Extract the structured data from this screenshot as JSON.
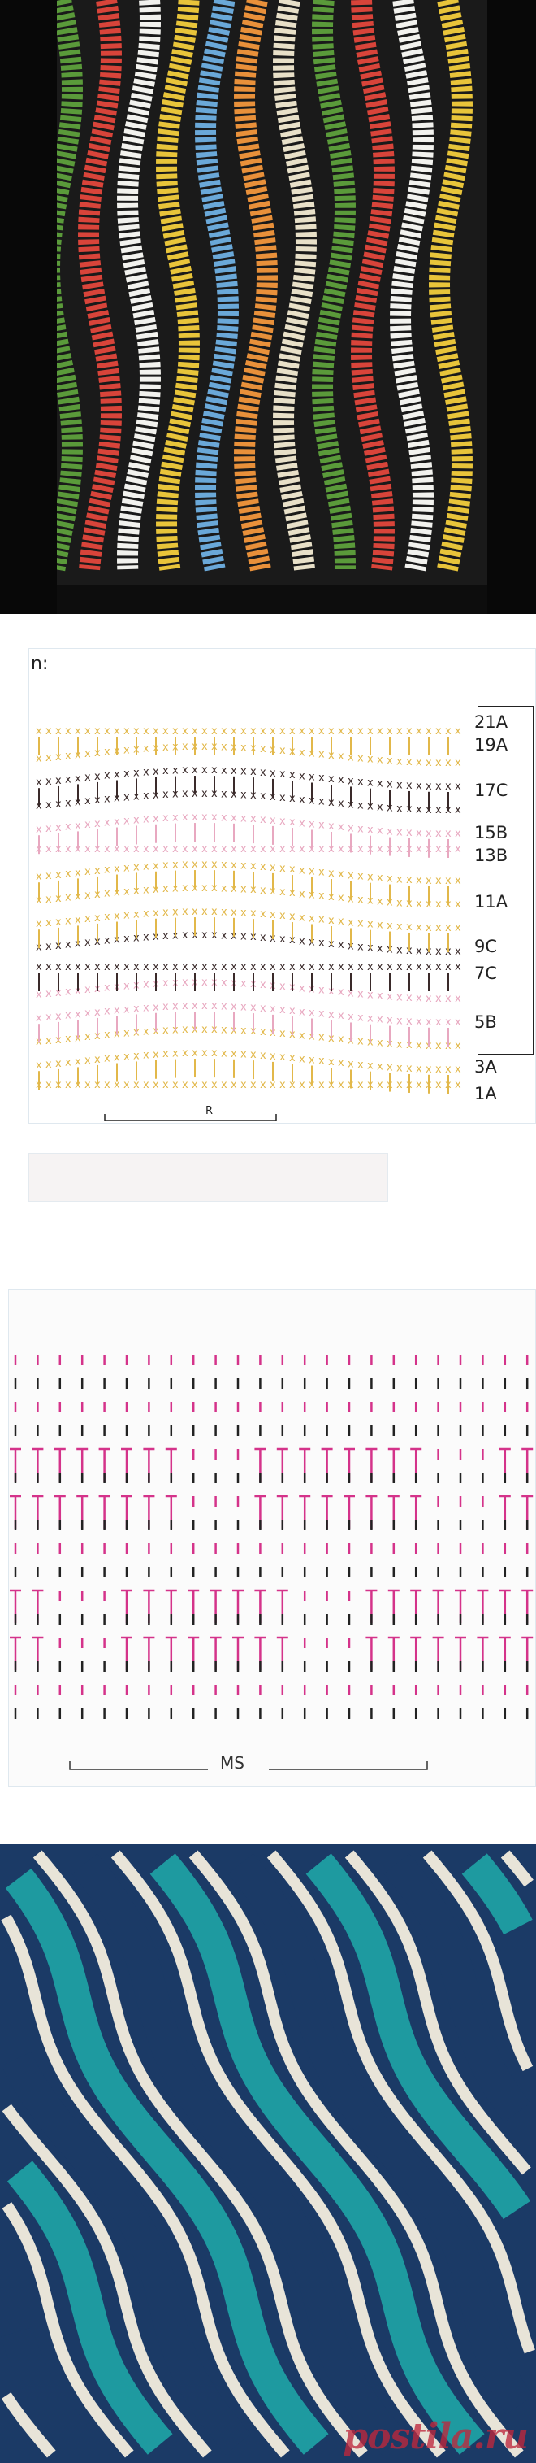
{
  "photo_top": {
    "subject": "crochet-top-photo",
    "stripe_colors": [
      "#5a9a3a",
      "#d8443a",
      "#f2f2ee",
      "#e8c43a",
      "#6aa8d8",
      "#e8903a",
      "#e8e0c8"
    ],
    "background": "#111111"
  },
  "chart1": {
    "heading": "n:",
    "row_labels": [
      "21A",
      "19A",
      "17C",
      "15B",
      "13B",
      "11A",
      "9C",
      "7C",
      "5B",
      "3A",
      "1A"
    ],
    "repeat_label": "R",
    "colors": {
      "A": "#e2b84a",
      "B": "#e8a8c0",
      "C": "#3a2a2a"
    }
  },
  "chart2": {
    "repeat_label": "MS",
    "colors": {
      "pink": "#d4338a",
      "black": "#222222"
    }
  },
  "photo_bottom": {
    "subject": "wave-stitch-blanket-photo",
    "stripe_colors": [
      "#1b3a66",
      "#1e9aa0",
      "#e8e4d8"
    ],
    "watermark": "postila.ru"
  }
}
